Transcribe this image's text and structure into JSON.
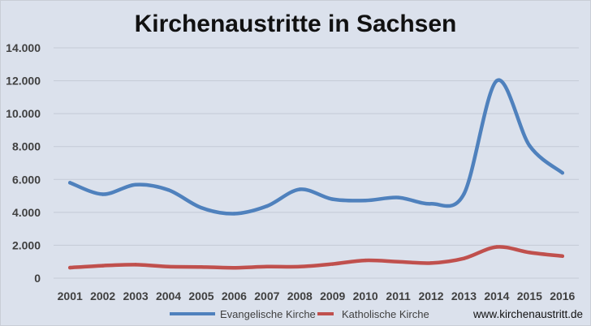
{
  "chart_data": {
    "type": "line",
    "title": "Kirchenaustritte in Sachsen",
    "xlabel": "",
    "ylabel": "",
    "categories": [
      "2001",
      "2002",
      "2003",
      "2004",
      "2005",
      "2006",
      "2007",
      "2008",
      "2009",
      "2010",
      "2011",
      "2012",
      "2013",
      "2014",
      "2015",
      "2016"
    ],
    "series": [
      {
        "name": "Evangelische Kirche",
        "color": "#4f81bd",
        "values": [
          5800,
          5100,
          5680,
          5360,
          4280,
          3920,
          4380,
          5400,
          4800,
          4720,
          4900,
          4520,
          5120,
          12000,
          8050,
          6400
        ]
      },
      {
        "name": "Katholische Kirche",
        "color": "#c0504d",
        "values": [
          640,
          760,
          820,
          700,
          680,
          630,
          700,
          700,
          860,
          1080,
          1000,
          920,
          1200,
          1900,
          1560,
          1340
        ]
      }
    ],
    "ylim": [
      0,
      14000
    ],
    "y_ticks": [
      "0",
      "2.000",
      "4.000",
      "6.000",
      "8.000",
      "10.000",
      "12.000",
      "14.000"
    ],
    "grid": true,
    "legend_position": "bottom"
  },
  "source": "www.kirchenaustritt.de",
  "colors": {
    "background": "#dbe1ec",
    "gridline": "#c4cad6"
  }
}
